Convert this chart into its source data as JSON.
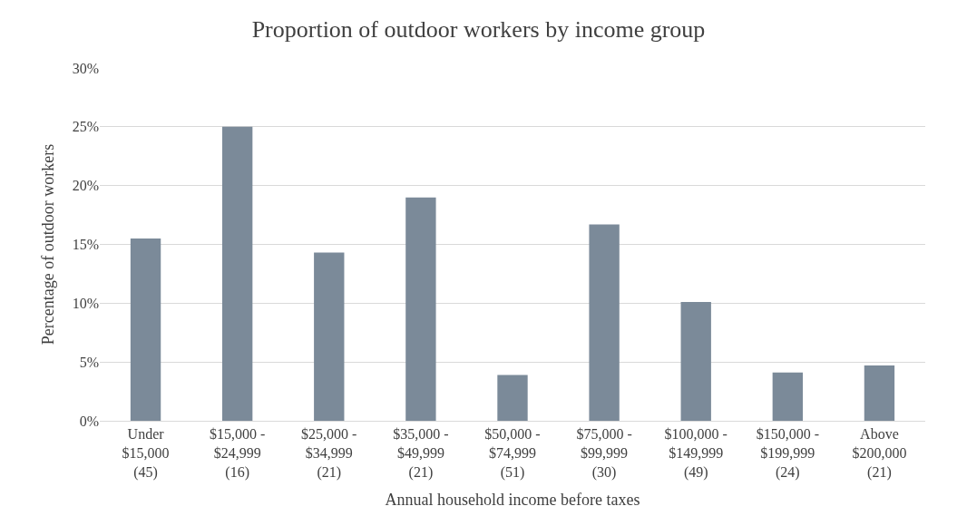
{
  "chart_data": {
    "type": "bar",
    "title": "Proportion of outdoor workers by income group",
    "xlabel": "Annual household income before taxes",
    "ylabel": "Percentage of outdoor workers",
    "categories": [
      "Under\n$15,000\n(45)",
      "$15,000 -\n$24,999\n(16)",
      "$25,000 -\n$34,999\n(21)",
      "$35,000 -\n$49,999\n(21)",
      "$50,000 -\n$74,999\n(51)",
      "$75,000 -\n$99,999\n(30)",
      "$100,000 -\n$149,999\n(49)",
      "$150,000 -\n$199,999\n(24)",
      "Above\n$200,000\n(21)"
    ],
    "values": [
      15.5,
      25.0,
      14.3,
      19.0,
      3.9,
      16.7,
      10.1,
      4.1,
      4.7
    ],
    "color": "#7b8a99",
    "ylim": [
      0,
      30
    ],
    "yticks": [
      {
        "value": 0,
        "label": "0%"
      },
      {
        "value": 5,
        "label": "5%"
      },
      {
        "value": 10,
        "label": "10%"
      },
      {
        "value": 15,
        "label": "15%"
      },
      {
        "value": 20,
        "label": "20%"
      },
      {
        "value": 25,
        "label": "25%"
      },
      {
        "value": 30,
        "label": "30%"
      }
    ],
    "grid": "y",
    "legend": false
  }
}
